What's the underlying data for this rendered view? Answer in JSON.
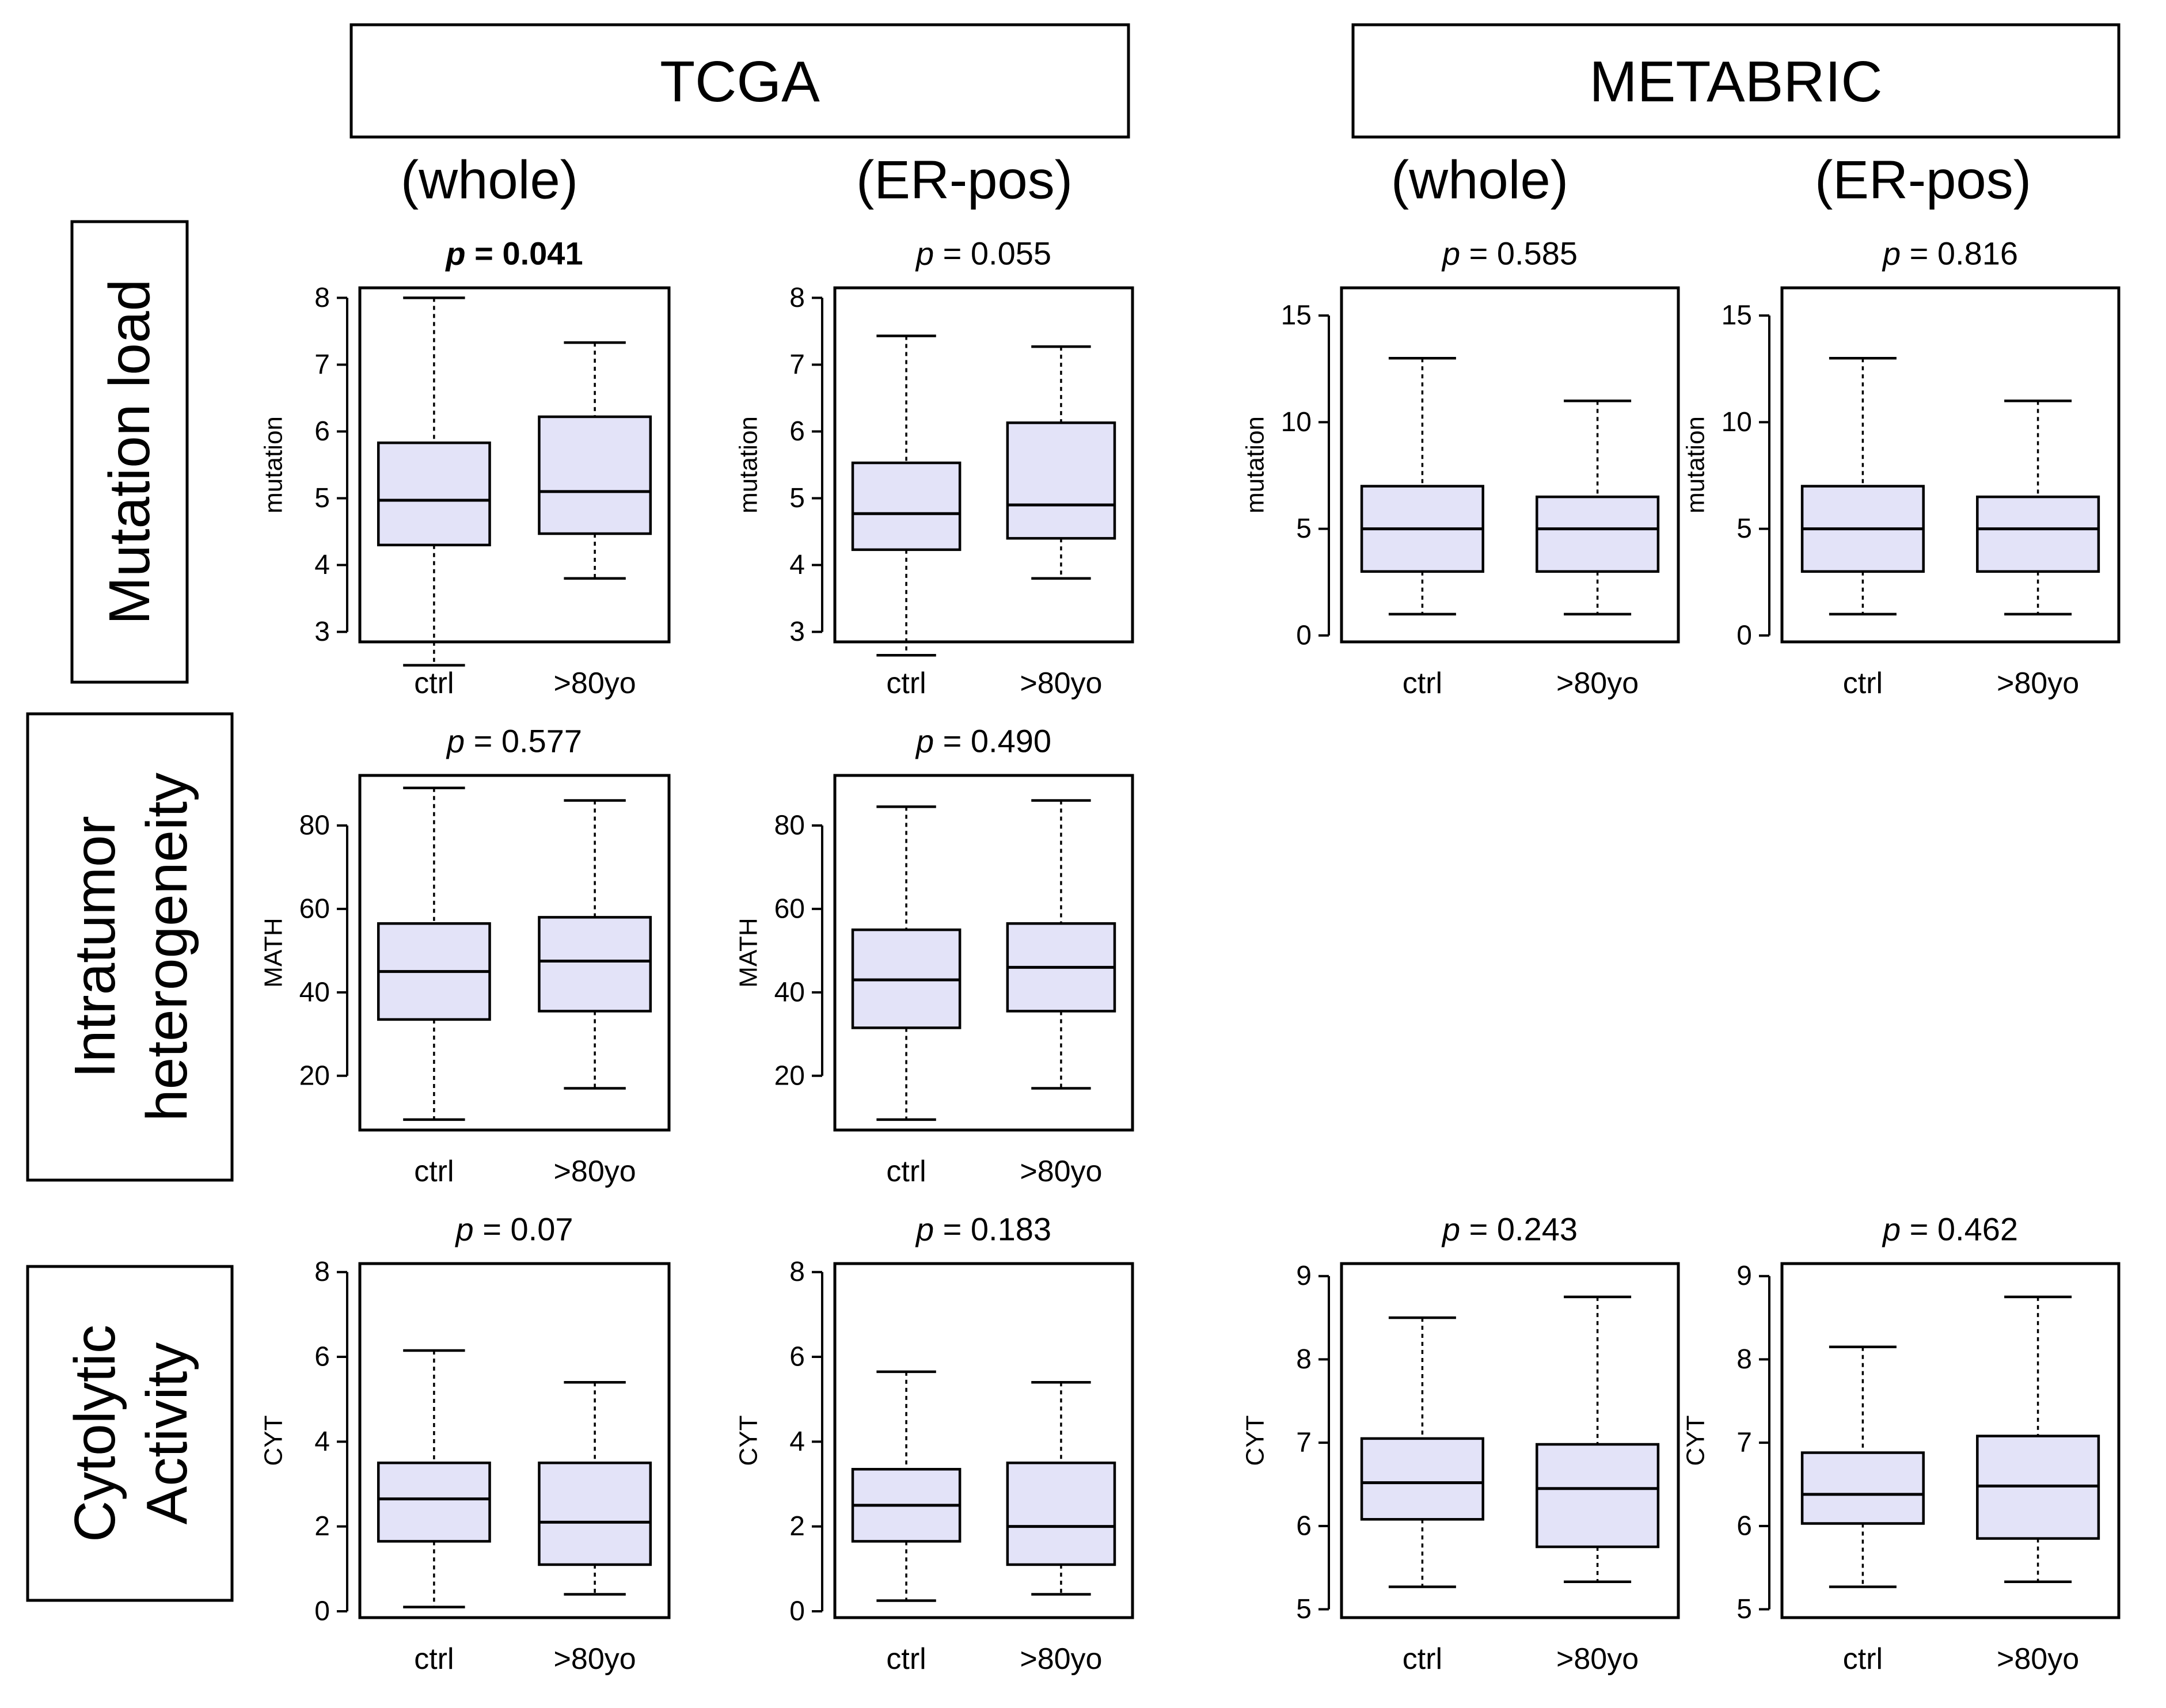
{
  "colors": {
    "box_fill": "#e3e3f8",
    "stroke": "#000000",
    "background": "#ffffff"
  },
  "datasets": [
    {
      "title": "TCGA",
      "subsets": [
        "(whole)",
        "(ER-pos)"
      ]
    },
    {
      "title": "METABRIC",
      "subsets": [
        "(whole)",
        "(ER-pos)"
      ]
    }
  ],
  "rows": [
    {
      "label_lines": [
        "Mutation load"
      ]
    },
    {
      "label_lines": [
        "Intratumor",
        "heterogeneity"
      ]
    },
    {
      "label_lines": [
        "Cytolytic",
        "Activity"
      ]
    }
  ],
  "chart_data": [
    {
      "type": "boxplot",
      "dataset": "TCGA",
      "subset": "whole",
      "metric": "Mutation load",
      "title": "p = 0.041",
      "p_prefix": "p",
      "p_value": "0.041",
      "bold": true,
      "ylabel": "mutation",
      "ylim": [
        2.85,
        8.15
      ],
      "yticks": [
        3,
        4,
        5,
        6,
        7,
        8
      ],
      "categories": [
        "ctrl",
        ">80yo"
      ],
      "boxes": [
        {
          "low": 2.5,
          "q1": 4.3,
          "median": 4.97,
          "q3": 5.83,
          "high": 8.0
        },
        {
          "low": 3.8,
          "q1": 4.47,
          "median": 5.1,
          "q3": 6.22,
          "high": 7.33
        }
      ]
    },
    {
      "type": "boxplot",
      "dataset": "TCGA",
      "subset": "ER-pos",
      "metric": "Mutation load",
      "title": "p = 0.055",
      "p_prefix": "p",
      "p_value": "0.055",
      "ylabel": "mutation",
      "ylim": [
        2.85,
        8.15
      ],
      "yticks": [
        3,
        4,
        5,
        6,
        7,
        8
      ],
      "categories": [
        "ctrl",
        ">80yo"
      ],
      "boxes": [
        {
          "low": 2.65,
          "q1": 4.23,
          "median": 4.77,
          "q3": 5.53,
          "high": 7.43
        },
        {
          "low": 3.8,
          "q1": 4.4,
          "median": 4.9,
          "q3": 6.13,
          "high": 7.27
        }
      ]
    },
    {
      "type": "boxplot",
      "dataset": "METABRIC",
      "subset": "whole",
      "metric": "Mutation load",
      "title": "p = 0.585",
      "p_prefix": "p",
      "p_value": "0.585",
      "ylabel": "mutation",
      "ylim": [
        -0.3,
        16.3
      ],
      "yticks": [
        0,
        5,
        10,
        15
      ],
      "categories": [
        "ctrl",
        ">80yo"
      ],
      "boxes": [
        {
          "low": 1,
          "q1": 3,
          "median": 5,
          "q3": 7,
          "high": 13
        },
        {
          "low": 1,
          "q1": 3,
          "median": 5,
          "q3": 6.5,
          "high": 11
        }
      ]
    },
    {
      "type": "boxplot",
      "dataset": "METABRIC",
      "subset": "ER-pos",
      "metric": "Mutation load",
      "title": "p = 0.816",
      "p_prefix": "p",
      "p_value": "0.816",
      "ylabel": "mutation",
      "ylim": [
        -0.3,
        16.3
      ],
      "yticks": [
        0,
        5,
        10,
        15
      ],
      "categories": [
        "ctrl",
        ">80yo"
      ],
      "boxes": [
        {
          "low": 1,
          "q1": 3,
          "median": 5,
          "q3": 7,
          "high": 13
        },
        {
          "low": 1,
          "q1": 3,
          "median": 5,
          "q3": 6.5,
          "high": 11
        }
      ]
    },
    {
      "type": "boxplot",
      "dataset": "TCGA",
      "subset": "whole",
      "metric": "Intratumor heterogeneity",
      "title": "p = 0.577",
      "p_prefix": "p",
      "p_value": "0.577",
      "ylabel": "MATH",
      "ylim": [
        7,
        92
      ],
      "yticks": [
        20,
        40,
        60,
        80
      ],
      "categories": [
        "ctrl",
        ">80yo"
      ],
      "boxes": [
        {
          "low": 9.5,
          "q1": 33.5,
          "median": 45,
          "q3": 56.5,
          "high": 89
        },
        {
          "low": 17,
          "q1": 35.5,
          "median": 47.5,
          "q3": 58,
          "high": 86
        }
      ]
    },
    {
      "type": "boxplot",
      "dataset": "TCGA",
      "subset": "ER-pos",
      "metric": "Intratumor heterogeneity",
      "title": "p = 0.490",
      "p_prefix": "p",
      "p_value": "0.490",
      "ylabel": "MATH",
      "ylim": [
        7,
        92
      ],
      "yticks": [
        20,
        40,
        60,
        80
      ],
      "categories": [
        "ctrl",
        ">80yo"
      ],
      "boxes": [
        {
          "low": 9.5,
          "q1": 31.5,
          "median": 43,
          "q3": 55,
          "high": 84.5
        },
        {
          "low": 17,
          "q1": 35.5,
          "median": 46,
          "q3": 56.5,
          "high": 86
        }
      ]
    },
    {
      "type": "boxplot",
      "dataset": "TCGA",
      "subset": "whole",
      "metric": "Cytolytic Activity",
      "title": "p = 0.07",
      "p_prefix": "p",
      "p_value": "0.07",
      "ylabel": "CYT",
      "ylim": [
        -0.15,
        8.2
      ],
      "yticks": [
        0,
        2,
        4,
        6,
        8
      ],
      "categories": [
        "ctrl",
        ">80yo"
      ],
      "boxes": [
        {
          "low": 0.1,
          "q1": 1.65,
          "median": 2.65,
          "q3": 3.5,
          "high": 6.15
        },
        {
          "low": 0.4,
          "q1": 1.1,
          "median": 2.1,
          "q3": 3.5,
          "high": 5.4
        }
      ]
    },
    {
      "type": "boxplot",
      "dataset": "TCGA",
      "subset": "ER-pos",
      "metric": "Cytolytic Activity",
      "title": "p = 0.183",
      "p_prefix": "p",
      "p_value": "0.183",
      "ylabel": "CYT",
      "ylim": [
        -0.15,
        8.2
      ],
      "yticks": [
        0,
        2,
        4,
        6,
        8
      ],
      "categories": [
        "ctrl",
        ">80yo"
      ],
      "boxes": [
        {
          "low": 0.25,
          "q1": 1.65,
          "median": 2.5,
          "q3": 3.35,
          "high": 5.65
        },
        {
          "low": 0.4,
          "q1": 1.1,
          "median": 2.0,
          "q3": 3.5,
          "high": 5.4
        }
      ]
    },
    {
      "type": "boxplot",
      "dataset": "METABRIC",
      "subset": "whole",
      "metric": "Cytolytic Activity",
      "title": "p = 0.243",
      "p_prefix": "p",
      "p_value": "0.243",
      "ylabel": "CYT",
      "ylim": [
        4.9,
        9.15
      ],
      "yticks": [
        5,
        6,
        7,
        8,
        9
      ],
      "categories": [
        "ctrl",
        ">80yo"
      ],
      "boxes": [
        {
          "low": 5.27,
          "q1": 6.08,
          "median": 6.52,
          "q3": 7.05,
          "high": 8.5
        },
        {
          "low": 5.33,
          "q1": 5.75,
          "median": 6.45,
          "q3": 6.98,
          "high": 8.75
        }
      ]
    },
    {
      "type": "boxplot",
      "dataset": "METABRIC",
      "subset": "ER-pos",
      "metric": "Cytolytic Activity",
      "title": "p = 0.462",
      "p_prefix": "p",
      "p_value": "0.462",
      "ylabel": "CYT",
      "ylim": [
        4.9,
        9.15
      ],
      "yticks": [
        5,
        6,
        7,
        8,
        9
      ],
      "categories": [
        "ctrl",
        ">80yo"
      ],
      "boxes": [
        {
          "low": 5.27,
          "q1": 6.03,
          "median": 6.38,
          "q3": 6.88,
          "high": 8.15
        },
        {
          "low": 5.33,
          "q1": 5.85,
          "median": 6.48,
          "q3": 7.08,
          "high": 8.75
        }
      ]
    }
  ]
}
